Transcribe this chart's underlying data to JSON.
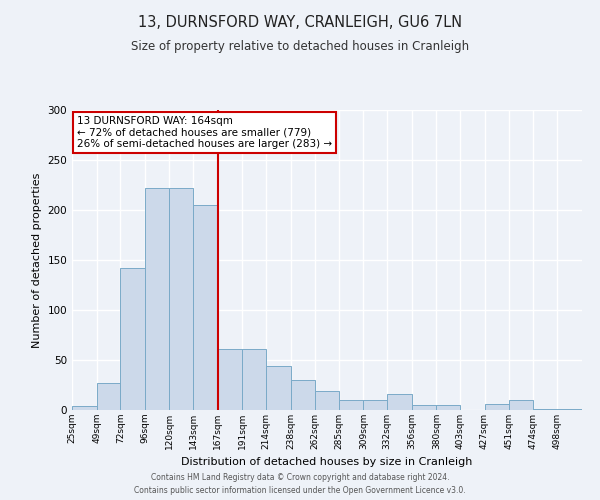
{
  "title": "13, DURNSFORD WAY, CRANLEIGH, GU6 7LN",
  "subtitle": "Size of property relative to detached houses in Cranleigh",
  "xlabel": "Distribution of detached houses by size in Cranleigh",
  "ylabel": "Number of detached properties",
  "bar_labels": [
    "25sqm",
    "49sqm",
    "72sqm",
    "96sqm",
    "120sqm",
    "143sqm",
    "167sqm",
    "191sqm",
    "214sqm",
    "238sqm",
    "262sqm",
    "285sqm",
    "309sqm",
    "332sqm",
    "356sqm",
    "380sqm",
    "403sqm",
    "427sqm",
    "451sqm",
    "474sqm",
    "498sqm"
  ],
  "bar_values": [
    4,
    27,
    142,
    222,
    222,
    205,
    61,
    61,
    44,
    30,
    19,
    10,
    10,
    16,
    5,
    5,
    0,
    6,
    10,
    1,
    1
  ],
  "bar_color": "#ccd9ea",
  "bar_edge_color": "#7aaac8",
  "background_color": "#eef2f8",
  "grid_color": "#ffffff",
  "ylim": [
    0,
    300
  ],
  "yticks": [
    0,
    50,
    100,
    150,
    200,
    250,
    300
  ],
  "property_line_color": "#cc0000",
  "annotation_title": "13 DURNSFORD WAY: 164sqm",
  "annotation_line1": "← 72% of detached houses are smaller (779)",
  "annotation_line2": "26% of semi-detached houses are larger (283) →",
  "annotation_box_edge_color": "#cc0000",
  "footer_line1": "Contains HM Land Registry data © Crown copyright and database right 2024.",
  "footer_line2": "Contains public sector information licensed under the Open Government Licence v3.0.",
  "bin_edges": [
    25,
    49,
    72,
    96,
    120,
    143,
    167,
    191,
    214,
    238,
    262,
    285,
    309,
    332,
    356,
    380,
    403,
    427,
    451,
    474,
    498,
    522
  ]
}
